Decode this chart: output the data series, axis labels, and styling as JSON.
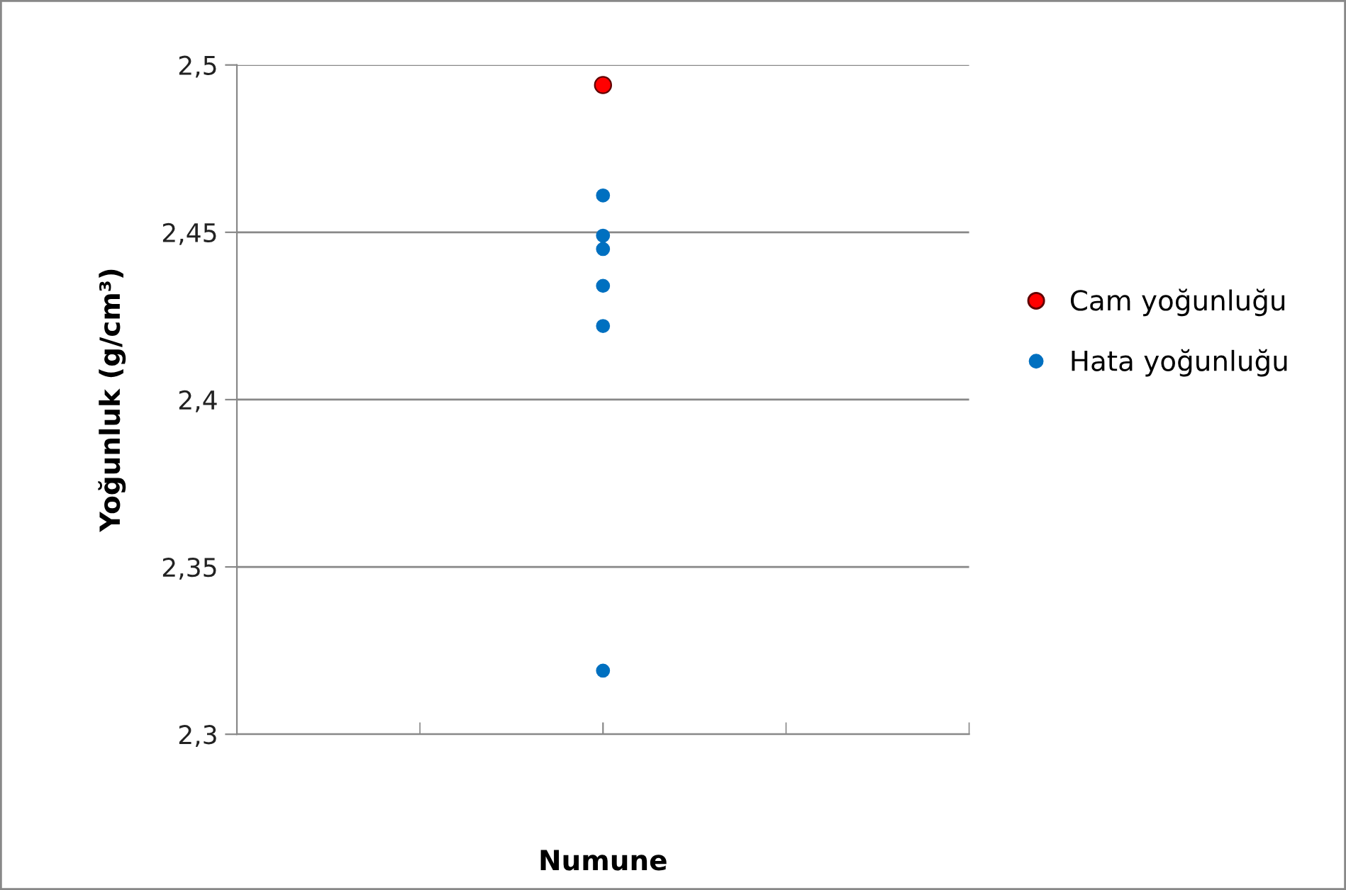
{
  "chart_data": {
    "type": "scatter",
    "xlabel": "Numune",
    "ylabel": "Yoğunluk (g/cm³)",
    "categories": [
      null
    ],
    "ylim": [
      2.3,
      2.5
    ],
    "yticks": [
      {
        "value": 2.3,
        "label": "2,3"
      },
      {
        "value": 2.35,
        "label": "2,35"
      },
      {
        "value": 2.4,
        "label": "2,4"
      },
      {
        "value": 2.45,
        "label": "2,45"
      },
      {
        "value": 2.5,
        "label": "2,5"
      }
    ],
    "grid": "y",
    "legend": "right",
    "marker": "circle",
    "series": [
      {
        "name": "Cam yoğunluğu",
        "color": "#ff0000",
        "x": [
          null
        ],
        "values": [
          2.494
        ]
      },
      {
        "name": "Hata yoğunluğu",
        "color": "#0070c0",
        "x": [
          null,
          null,
          null,
          null,
          null,
          null
        ],
        "values": [
          2.461,
          2.449,
          2.445,
          2.434,
          2.422,
          2.319
        ]
      }
    ]
  }
}
